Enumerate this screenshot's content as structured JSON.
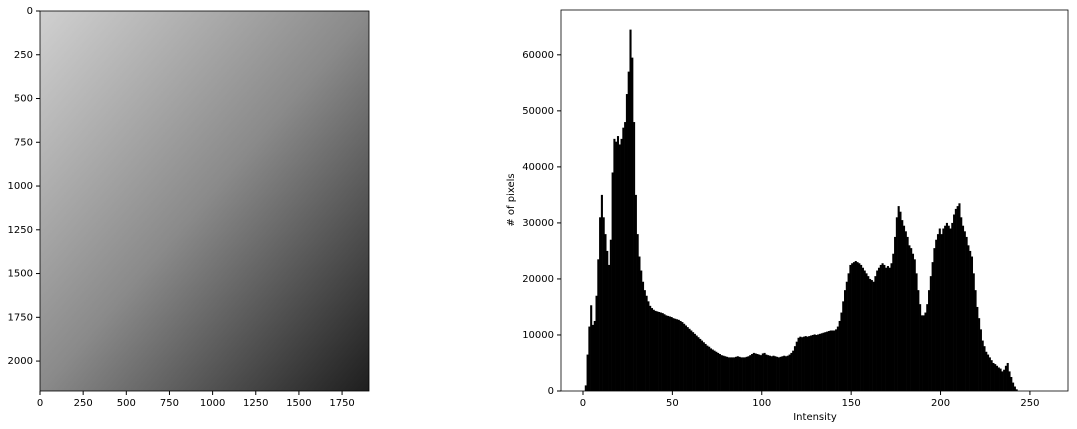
{
  "chart_data": [
    {
      "type": "image",
      "xlim": [
        0,
        1906
      ],
      "ylim": [
        2171,
        0
      ],
      "xticks": [
        0,
        250,
        500,
        750,
        1000,
        1250,
        1500,
        1750
      ],
      "yticks": [
        0,
        250,
        500,
        750,
        1000,
        1250,
        1500,
        1750,
        2000
      ]
    },
    {
      "type": "histogram",
      "color": "#000000",
      "xlabel": "Intensity",
      "ylabel": "# of pixels",
      "xlim": [
        -12.3,
        271.3
      ],
      "ylim": [
        0,
        68000
      ],
      "xticks": [
        0,
        50,
        100,
        150,
        200,
        250
      ],
      "yticks": [
        0,
        10000,
        20000,
        30000,
        40000,
        50000,
        60000
      ],
      "bins": [
        0,
        1,
        2,
        3,
        4,
        5,
        6,
        7,
        8,
        9,
        10,
        11,
        12,
        13,
        14,
        15,
        16,
        17,
        18,
        19,
        20,
        21,
        22,
        23,
        24,
        25,
        26,
        27,
        28,
        29,
        30,
        31,
        32,
        33,
        34,
        35,
        36,
        37,
        38,
        39,
        40,
        41,
        42,
        43,
        44,
        45,
        46,
        47,
        48,
        49,
        50,
        51,
        52,
        53,
        54,
        55,
        56,
        57,
        58,
        59,
        60,
        61,
        62,
        63,
        64,
        65,
        66,
        67,
        68,
        69,
        70,
        71,
        72,
        73,
        74,
        75,
        76,
        77,
        78,
        79,
        80,
        81,
        82,
        83,
        84,
        85,
        86,
        87,
        88,
        89,
        90,
        91,
        92,
        93,
        94,
        95,
        96,
        97,
        98,
        99,
        100,
        101,
        102,
        103,
        104,
        105,
        106,
        107,
        108,
        109,
        110,
        111,
        112,
        113,
        114,
        115,
        116,
        117,
        118,
        119,
        120,
        121,
        122,
        123,
        124,
        125,
        126,
        127,
        128,
        129,
        130,
        131,
        132,
        133,
        134,
        135,
        136,
        137,
        138,
        139,
        140,
        141,
        142,
        143,
        144,
        145,
        146,
        147,
        148,
        149,
        150,
        151,
        152,
        153,
        154,
        155,
        156,
        157,
        158,
        159,
        160,
        161,
        162,
        163,
        164,
        165,
        166,
        167,
        168,
        169,
        170,
        171,
        172,
        173,
        174,
        175,
        176,
        177,
        178,
        179,
        180,
        181,
        182,
        183,
        184,
        185,
        186,
        187,
        188,
        189,
        190,
        191,
        192,
        193,
        194,
        195,
        196,
        197,
        198,
        199,
        200,
        201,
        202,
        203,
        204,
        205,
        206,
        207,
        208,
        209,
        210,
        211,
        212,
        213,
        214,
        215,
        216,
        217,
        218,
        219,
        220,
        221,
        222,
        223,
        224,
        225,
        226,
        227,
        228,
        229,
        230,
        231,
        232,
        233,
        234,
        235,
        236,
        237,
        238,
        239,
        240,
        241,
        242,
        243,
        244,
        245,
        246,
        247,
        248,
        249,
        250,
        251,
        252,
        253,
        254,
        255,
        256
      ],
      "values": [
        0,
        1000,
        6500,
        11500,
        15300,
        11800,
        12500,
        17000,
        23500,
        31000,
        35000,
        31000,
        28000,
        25000,
        22500,
        27000,
        39000,
        45000,
        44500,
        45500,
        44000,
        45000,
        47000,
        48000,
        53000,
        57000,
        64500,
        59500,
        48000,
        35000,
        28000,
        24000,
        21500,
        19500,
        18000,
        17000,
        16000,
        15200,
        14800,
        14500,
        14300,
        14200,
        14100,
        14000,
        13900,
        13700,
        13500,
        13400,
        13300,
        13200,
        13000,
        12900,
        12800,
        12700,
        12500,
        12300,
        12000,
        11700,
        11400,
        11100,
        10800,
        10500,
        10200,
        9900,
        9600,
        9300,
        9000,
        8700,
        8400,
        8100,
        7900,
        7600,
        7400,
        7200,
        7000,
        6800,
        6600,
        6400,
        6300,
        6200,
        6100,
        6000,
        6000,
        6000,
        6000,
        6100,
        6200,
        6100,
        6000,
        6000,
        6000,
        6100,
        6200,
        6400,
        6600,
        6800,
        6700,
        6600,
        6500,
        6400,
        6700,
        6800,
        6500,
        6400,
        6300,
        6200,
        6300,
        6200,
        6100,
        6000,
        6100,
        6200,
        6300,
        6200,
        6300,
        6500,
        6800,
        7200,
        8000,
        8800,
        9500,
        9700,
        9600,
        9700,
        9800,
        9700,
        9800,
        9900,
        10000,
        10100,
        10000,
        10100,
        10200,
        10300,
        10400,
        10500,
        10600,
        10700,
        10800,
        10800,
        10800,
        11000,
        11500,
        12500,
        14000,
        16000,
        18000,
        19500,
        21000,
        22500,
        22800,
        23000,
        23200,
        23000,
        22800,
        22500,
        22000,
        21500,
        21000,
        20500,
        20000,
        19800,
        19500,
        20500,
        21500,
        22000,
        22500,
        22800,
        22500,
        22000,
        22300,
        22000,
        22800,
        24500,
        27500,
        31000,
        33000,
        32000,
        30500,
        29500,
        28500,
        27500,
        26000,
        25500,
        24500,
        23500,
        21000,
        18000,
        15500,
        13500,
        13500,
        14000,
        15500,
        18000,
        20500,
        23000,
        25500,
        27000,
        28000,
        29000,
        28000,
        29000,
        29500,
        30000,
        29500,
        29000,
        30000,
        31500,
        32500,
        33000,
        33500,
        31000,
        29500,
        28500,
        27500,
        26000,
        25000,
        24000,
        21000,
        18000,
        15000,
        13000,
        11000,
        9000,
        8000,
        7000,
        6500,
        6000,
        5500,
        5000,
        4800,
        4500,
        4200,
        4000,
        3500,
        3800,
        4500,
        5000,
        3500,
        2500,
        1500,
        800,
        300,
        0,
        0,
        0,
        0,
        0,
        0,
        0,
        0,
        0,
        0,
        0,
        0,
        0
      ]
    }
  ]
}
